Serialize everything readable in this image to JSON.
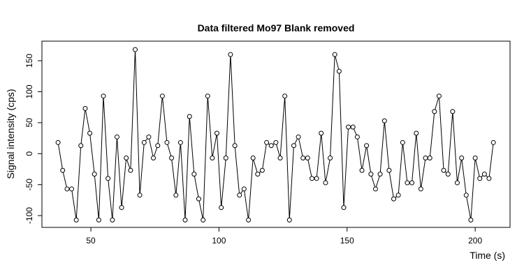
{
  "chart_data": {
    "type": "line",
    "title": "Data filtered Mo97 Blank removed",
    "xlabel": "Time (s)",
    "ylabel": "Signal intensity (cps)",
    "x": [
      37.2,
      39.0,
      40.7,
      42.5,
      44.3,
      46.1,
      47.8,
      49.6,
      51.4,
      53.1,
      54.9,
      56.7,
      58.4,
      60.2,
      62.0,
      63.8,
      65.5,
      67.3,
      69.1,
      70.8,
      72.6,
      74.4,
      76.1,
      77.9,
      79.7,
      81.5,
      83.2,
      85.0,
      86.8,
      88.5,
      90.3,
      92.1,
      93.8,
      95.6,
      97.4,
      99.2,
      100.9,
      102.7,
      104.5,
      106.2,
      108.0,
      109.8,
      111.5,
      113.3,
      115.1,
      116.9,
      118.6,
      120.4,
      122.2,
      123.9,
      125.7,
      127.5,
      129.2,
      131.0,
      132.8,
      134.6,
      136.3,
      138.1,
      139.9,
      141.6,
      143.4,
      145.2,
      146.9,
      148.7,
      150.5,
      152.3,
      154.0,
      155.8,
      157.6,
      159.3,
      161.1,
      162.9,
      164.6,
      166.4,
      168.2,
      170.0,
      171.7,
      173.5,
      175.3,
      177.0,
      178.8,
      180.6,
      182.3,
      184.1,
      185.9,
      187.7,
      189.4,
      191.2,
      193.0,
      194.7,
      196.5,
      198.3,
      200.0,
      201.8,
      203.6,
      205.4,
      207.1
    ],
    "series": [
      {
        "color": "#000000",
        "values": [
          18,
          -27,
          -57,
          -57,
          -107,
          13,
          73,
          33,
          -33,
          -107,
          93,
          -40,
          -107,
          27,
          -87,
          -7,
          -27,
          168,
          -67,
          18,
          27,
          -7,
          13,
          93,
          18,
          -7,
          -67,
          18,
          -107,
          60,
          -33,
          -73,
          -107,
          93,
          -7,
          33,
          -87,
          -7,
          160,
          13,
          -67,
          -57,
          -107,
          -7,
          -33,
          -27,
          18,
          13,
          18,
          -7,
          93,
          -107,
          13,
          27,
          -7,
          -7,
          -40,
          -40,
          33,
          -47,
          -7,
          160,
          133,
          -87,
          43,
          43,
          27,
          -27,
          13,
          -33,
          -57,
          -33,
          53,
          -27,
          -73,
          -67,
          18,
          -47,
          -47,
          33,
          -57,
          -7,
          -7,
          68,
          93,
          -27,
          -33,
          68,
          -47,
          -7,
          -67,
          -107,
          -7,
          -40,
          -33,
          -40,
          18
        ]
      }
    ],
    "xlim": [
      30.9,
      213.6
    ],
    "ylim": [
      -119,
      181.6
    ],
    "xticks": [
      50,
      100,
      150,
      200
    ],
    "yticks": [
      -100,
      -50,
      0,
      50,
      100,
      150
    ]
  }
}
